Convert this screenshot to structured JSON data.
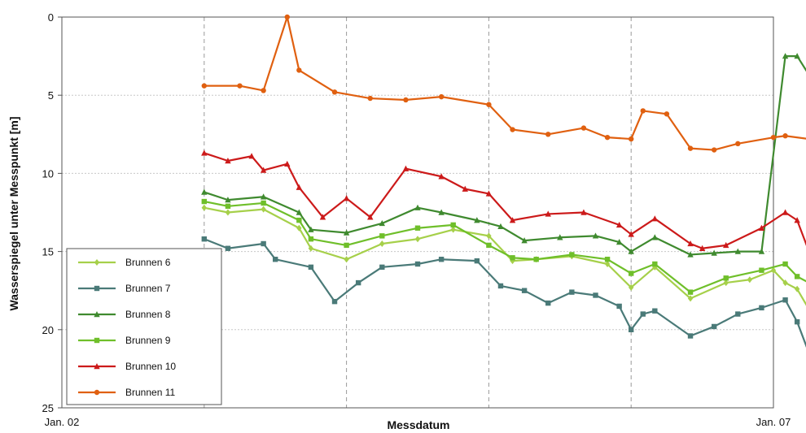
{
  "chart_data": {
    "type": "line",
    "title": "",
    "xlabel": "Messdatum",
    "ylabel": "Wasserspiegel unter Messpunkt [m]",
    "x_range": [
      "2002-01",
      "2007-01"
    ],
    "x_ticks": [
      "Jan. 02",
      "Jan. 07"
    ],
    "ylim": [
      25,
      0
    ],
    "y_inverted": true,
    "y_ticks": [
      "0",
      "5",
      "10",
      "15",
      "20",
      "25"
    ],
    "y_tick_values": [
      0,
      5,
      10,
      15,
      20,
      25
    ],
    "grid": "horizontal dotted lines and vertical dashed lines",
    "legend_position": "bottom-left",
    "series": [
      {
        "name": "Brunnen 6",
        "color": "#a6d04a",
        "marker": "diamond",
        "points": [
          [
            "2003-01",
            12.2
          ],
          [
            "2003-03",
            12.5
          ],
          [
            "2003-06",
            12.3
          ],
          [
            "2003-09",
            13.5
          ],
          [
            "2003-10",
            14.8
          ],
          [
            "2004-01",
            15.5
          ],
          [
            "2004-04",
            14.5
          ],
          [
            "2004-07",
            14.2
          ],
          [
            "2004-10",
            13.6
          ],
          [
            "2005-01",
            14.0
          ],
          [
            "2005-03",
            15.6
          ],
          [
            "2005-05",
            15.5
          ],
          [
            "2005-08",
            15.3
          ],
          [
            "2005-11",
            15.8
          ],
          [
            "2006-01",
            17.3
          ],
          [
            "2006-03",
            16.0
          ],
          [
            "2006-06",
            18.0
          ],
          [
            "2006-09",
            17.0
          ],
          [
            "2006-11",
            16.8
          ],
          [
            "2007-01",
            16.2
          ],
          [
            "2007-02",
            17.0
          ],
          [
            "2007-03",
            17.4
          ],
          [
            "2007-04",
            18.7
          ]
        ]
      },
      {
        "name": "Brunnen 7",
        "color": "#4a7a78",
        "marker": "square",
        "points": [
          [
            "2003-01",
            14.2
          ],
          [
            "2003-03",
            14.8
          ],
          [
            "2003-06",
            14.5
          ],
          [
            "2003-07",
            15.5
          ],
          [
            "2003-10",
            16.0
          ],
          [
            "2003-12",
            18.2
          ],
          [
            "2004-02",
            17.0
          ],
          [
            "2004-04",
            16.0
          ],
          [
            "2004-07",
            15.8
          ],
          [
            "2004-09",
            15.5
          ],
          [
            "2004-12",
            15.6
          ],
          [
            "2005-02",
            17.2
          ],
          [
            "2005-04",
            17.5
          ],
          [
            "2005-06",
            18.3
          ],
          [
            "2005-08",
            17.6
          ],
          [
            "2005-10",
            17.8
          ],
          [
            "2005-12",
            18.5
          ],
          [
            "2006-01",
            20.0
          ],
          [
            "2006-02",
            19.0
          ],
          [
            "2006-03",
            18.8
          ],
          [
            "2006-06",
            20.4
          ],
          [
            "2006-08",
            19.8
          ],
          [
            "2006-10",
            19.0
          ],
          [
            "2006-12",
            18.6
          ],
          [
            "2007-02",
            18.1
          ],
          [
            "2007-03",
            19.5
          ],
          [
            "2007-04",
            21.5
          ]
        ]
      },
      {
        "name": "Brunnen 8",
        "color": "#3f8a2f",
        "marker": "triangle",
        "points": [
          [
            "2003-01",
            11.2
          ],
          [
            "2003-03",
            11.7
          ],
          [
            "2003-06",
            11.5
          ],
          [
            "2003-09",
            12.5
          ],
          [
            "2003-10",
            13.6
          ],
          [
            "2004-01",
            13.8
          ],
          [
            "2004-04",
            13.2
          ],
          [
            "2004-07",
            12.2
          ],
          [
            "2004-09",
            12.5
          ],
          [
            "2004-12",
            13.0
          ],
          [
            "2005-02",
            13.4
          ],
          [
            "2005-04",
            14.3
          ],
          [
            "2005-07",
            14.1
          ],
          [
            "2005-10",
            14.0
          ],
          [
            "2005-12",
            14.4
          ],
          [
            "2006-01",
            15.0
          ],
          [
            "2006-03",
            14.1
          ],
          [
            "2006-06",
            15.2
          ],
          [
            "2006-08",
            15.1
          ],
          [
            "2006-10",
            15.0
          ],
          [
            "2006-12",
            15.0
          ],
          [
            "2007-02",
            2.5
          ],
          [
            "2007-03",
            2.5
          ],
          [
            "2007-04",
            3.7
          ]
        ]
      },
      {
        "name": "Brunnen 9",
        "color": "#6fbf2a",
        "marker": "square",
        "points": [
          [
            "2003-01",
            11.8
          ],
          [
            "2003-03",
            12.1
          ],
          [
            "2003-06",
            11.9
          ],
          [
            "2003-09",
            13.0
          ],
          [
            "2003-10",
            14.2
          ],
          [
            "2004-01",
            14.6
          ],
          [
            "2004-04",
            14.0
          ],
          [
            "2004-07",
            13.5
          ],
          [
            "2004-10",
            13.3
          ],
          [
            "2005-01",
            14.6
          ],
          [
            "2005-03",
            15.4
          ],
          [
            "2005-05",
            15.5
          ],
          [
            "2005-08",
            15.2
          ],
          [
            "2005-11",
            15.5
          ],
          [
            "2006-01",
            16.4
          ],
          [
            "2006-03",
            15.8
          ],
          [
            "2006-06",
            17.6
          ],
          [
            "2006-09",
            16.7
          ],
          [
            "2006-12",
            16.2
          ],
          [
            "2007-02",
            15.8
          ],
          [
            "2007-03",
            16.6
          ],
          [
            "2007-04",
            17.0
          ]
        ]
      },
      {
        "name": "Brunnen 10",
        "color": "#cc1a1a",
        "marker": "triangle",
        "points": [
          [
            "2003-01",
            8.7
          ],
          [
            "2003-03",
            9.2
          ],
          [
            "2003-05",
            8.9
          ],
          [
            "2003-06",
            9.8
          ],
          [
            "2003-08",
            9.4
          ],
          [
            "2003-09",
            10.9
          ],
          [
            "2003-11",
            12.8
          ],
          [
            "2004-01",
            11.6
          ],
          [
            "2004-03",
            12.8
          ],
          [
            "2004-06",
            9.7
          ],
          [
            "2004-09",
            10.2
          ],
          [
            "2004-11",
            11.0
          ],
          [
            "2005-01",
            11.3
          ],
          [
            "2005-03",
            13.0
          ],
          [
            "2005-06",
            12.6
          ],
          [
            "2005-09",
            12.5
          ],
          [
            "2005-12",
            13.3
          ],
          [
            "2006-01",
            13.9
          ],
          [
            "2006-03",
            12.9
          ],
          [
            "2006-06",
            14.5
          ],
          [
            "2006-07",
            14.8
          ],
          [
            "2006-09",
            14.6
          ],
          [
            "2006-12",
            13.5
          ],
          [
            "2007-02",
            12.5
          ],
          [
            "2007-03",
            13.0
          ],
          [
            "2007-04",
            15.0
          ]
        ]
      },
      {
        "name": "Brunnen 11",
        "color": "#e06010",
        "marker": "circle",
        "points": [
          [
            "2003-01",
            4.4
          ],
          [
            "2003-04",
            4.4
          ],
          [
            "2003-06",
            4.7
          ],
          [
            "2003-08",
            0.0
          ],
          [
            "2003-09",
            3.4
          ],
          [
            "2003-12",
            4.8
          ],
          [
            "2004-03",
            5.2
          ],
          [
            "2004-06",
            5.3
          ],
          [
            "2004-09",
            5.1
          ],
          [
            "2005-01",
            5.6
          ],
          [
            "2005-03",
            7.2
          ],
          [
            "2005-06",
            7.5
          ],
          [
            "2005-09",
            7.1
          ],
          [
            "2005-11",
            7.7
          ],
          [
            "2006-01",
            7.8
          ],
          [
            "2006-02",
            6.0
          ],
          [
            "2006-04",
            6.2
          ],
          [
            "2006-06",
            8.4
          ],
          [
            "2006-08",
            8.5
          ],
          [
            "2006-10",
            8.1
          ],
          [
            "2007-01",
            7.7
          ],
          [
            "2007-02",
            7.6
          ],
          [
            "2007-04",
            7.8
          ]
        ]
      }
    ]
  }
}
